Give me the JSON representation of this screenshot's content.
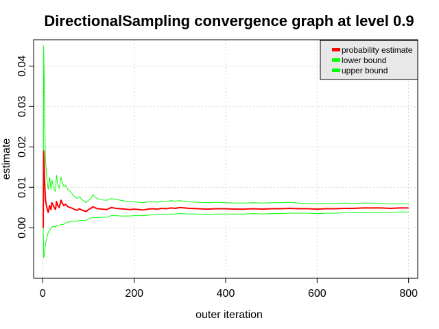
{
  "chart_data": {
    "type": "line",
    "title": "DirectionalSampling convergence graph at level 0.9",
    "xlabel": "outer iteration",
    "ylabel": "estimate",
    "xlim": [
      -20,
      820
    ],
    "ylim": [
      -0.0125,
      0.0465
    ],
    "x_ticks": [
      0,
      200,
      400,
      600,
      800
    ],
    "x_tick_labels": [
      "0",
      "200",
      "400",
      "600",
      "800"
    ],
    "y_ticks": [
      0.0,
      0.01,
      0.02,
      0.03,
      0.04
    ],
    "y_tick_labels": [
      "0.00",
      "0.01",
      "0.02",
      "0.03",
      "0.04"
    ],
    "grid": true,
    "legend_position": "top-right",
    "series": [
      {
        "name": "probability estimate",
        "color": "#ff0000",
        "x": [
          1,
          2,
          3,
          4,
          5,
          6,
          8,
          10,
          12,
          15,
          18,
          20,
          22,
          25,
          28,
          30,
          33,
          36,
          40,
          43,
          46,
          50,
          55,
          60,
          65,
          70,
          75,
          80,
          85,
          90,
          95,
          100,
          105,
          110,
          115,
          120,
          130,
          140,
          150,
          160,
          170,
          180,
          190,
          200,
          210,
          220,
          230,
          240,
          250,
          260,
          270,
          280,
          290,
          300,
          320,
          340,
          360,
          380,
          400,
          420,
          440,
          460,
          480,
          500,
          520,
          540,
          560,
          580,
          600,
          620,
          640,
          660,
          680,
          700,
          720,
          740,
          760,
          780,
          800
        ],
        "values": [
          0.0,
          0.019,
          0.016,
          0.012,
          0.009,
          0.007,
          0.0055,
          0.0045,
          0.0038,
          0.0055,
          0.0045,
          0.0062,
          0.0058,
          0.005,
          0.0045,
          0.0065,
          0.0055,
          0.005,
          0.0068,
          0.006,
          0.0055,
          0.0058,
          0.0052,
          0.005,
          0.0048,
          0.0045,
          0.0043,
          0.0047,
          0.0044,
          0.0042,
          0.004,
          0.0045,
          0.0048,
          0.0052,
          0.0049,
          0.0047,
          0.0046,
          0.0045,
          0.005,
          0.0048,
          0.0047,
          0.0046,
          0.0045,
          0.0046,
          0.0045,
          0.0044,
          0.0046,
          0.0047,
          0.0046,
          0.0048,
          0.0047,
          0.0049,
          0.0048,
          0.005,
          0.0048,
          0.0047,
          0.0046,
          0.0047,
          0.0047,
          0.0046,
          0.0046,
          0.0047,
          0.0046,
          0.0047,
          0.0047,
          0.0048,
          0.0047,
          0.0047,
          0.0046,
          0.0047,
          0.0047,
          0.0048,
          0.0048,
          0.0049,
          0.0049,
          0.0049,
          0.0048,
          0.0049,
          0.0049
        ]
      },
      {
        "name": "lower bound",
        "color": "#00ff00",
        "x": [
          1,
          2,
          3,
          4,
          5,
          6,
          8,
          10,
          12,
          15,
          18,
          20,
          22,
          25,
          28,
          30,
          33,
          36,
          40,
          43,
          46,
          50,
          55,
          60,
          65,
          70,
          75,
          80,
          85,
          90,
          95,
          100,
          105,
          110,
          115,
          120,
          130,
          140,
          150,
          160,
          170,
          180,
          190,
          200,
          210,
          220,
          230,
          240,
          250,
          260,
          270,
          280,
          290,
          300,
          320,
          340,
          360,
          380,
          400,
          420,
          440,
          460,
          480,
          500,
          520,
          540,
          560,
          580,
          600,
          620,
          640,
          660,
          680,
          700,
          720,
          740,
          760,
          780,
          800
        ],
        "values": [
          0.0,
          -0.0075,
          -0.007,
          -0.006,
          -0.005,
          -0.004,
          -0.003,
          -0.002,
          -0.0012,
          -0.0005,
          -0.0002,
          0.0002,
          0.0003,
          0.0003,
          0.0002,
          0.0005,
          0.0006,
          0.0006,
          0.0008,
          0.0008,
          0.0009,
          0.0012,
          0.0014,
          0.0015,
          0.0016,
          0.0016,
          0.0016,
          0.0018,
          0.0018,
          0.0018,
          0.0018,
          0.0022,
          0.0024,
          0.0026,
          0.0025,
          0.0025,
          0.0026,
          0.0026,
          0.003,
          0.003,
          0.0029,
          0.0029,
          0.0029,
          0.003,
          0.003,
          0.003,
          0.0031,
          0.0032,
          0.0032,
          0.0033,
          0.0033,
          0.0034,
          0.0034,
          0.0035,
          0.0034,
          0.0034,
          0.0033,
          0.0034,
          0.0034,
          0.0034,
          0.0034,
          0.0035,
          0.0034,
          0.0035,
          0.0035,
          0.0036,
          0.0036,
          0.0036,
          0.0035,
          0.0036,
          0.0036,
          0.0037,
          0.0037,
          0.0038,
          0.0038,
          0.0038,
          0.0038,
          0.0039,
          0.0039
        ]
      },
      {
        "name": "upper bound",
        "color": "#00ff00",
        "x": [
          1,
          2,
          3,
          4,
          5,
          6,
          8,
          10,
          12,
          15,
          18,
          20,
          22,
          25,
          28,
          30,
          33,
          36,
          40,
          43,
          46,
          50,
          55,
          60,
          65,
          70,
          75,
          80,
          85,
          90,
          95,
          100,
          105,
          110,
          115,
          120,
          130,
          140,
          150,
          160,
          170,
          180,
          190,
          200,
          210,
          220,
          230,
          240,
          250,
          260,
          270,
          280,
          290,
          300,
          320,
          340,
          360,
          380,
          400,
          420,
          440,
          460,
          480,
          500,
          520,
          540,
          560,
          580,
          600,
          620,
          640,
          660,
          680,
          700,
          720,
          740,
          760,
          780,
          800
        ],
        "values": [
          0.0,
          0.045,
          0.038,
          0.03,
          0.022,
          0.017,
          0.0135,
          0.011,
          0.0095,
          0.0125,
          0.0095,
          0.0118,
          0.0108,
          0.0095,
          0.009,
          0.013,
          0.0108,
          0.0098,
          0.0125,
          0.0112,
          0.0102,
          0.0105,
          0.0094,
          0.009,
          0.0083,
          0.0077,
          0.0072,
          0.0077,
          0.007,
          0.0066,
          0.0062,
          0.0068,
          0.0072,
          0.0082,
          0.0075,
          0.0072,
          0.0069,
          0.0068,
          0.0072,
          0.007,
          0.0068,
          0.0066,
          0.0064,
          0.0064,
          0.0063,
          0.0062,
          0.0064,
          0.0065,
          0.0063,
          0.0066,
          0.0065,
          0.0067,
          0.0066,
          0.0067,
          0.0064,
          0.0063,
          0.0062,
          0.0063,
          0.0062,
          0.0061,
          0.0061,
          0.0062,
          0.0061,
          0.0062,
          0.0062,
          0.0063,
          0.0061,
          0.006,
          0.0059,
          0.006,
          0.006,
          0.0061,
          0.006,
          0.0061,
          0.0061,
          0.006,
          0.0059,
          0.0059,
          0.0059
        ]
      }
    ]
  }
}
